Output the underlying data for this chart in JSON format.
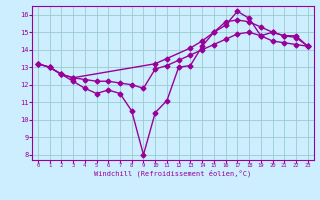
{
  "xlabel": "Windchill (Refroidissement éolien,°C)",
  "bg_color": "#cceeff",
  "grid_color": "#99cccc",
  "line_color": "#990099",
  "xlim": [
    -0.5,
    23.5
  ],
  "ylim": [
    7.7,
    16.5
  ],
  "yticks": [
    8,
    9,
    10,
    11,
    12,
    13,
    14,
    15,
    16
  ],
  "xticks": [
    0,
    1,
    2,
    3,
    4,
    5,
    6,
    7,
    8,
    9,
    10,
    11,
    12,
    13,
    14,
    15,
    16,
    17,
    18,
    19,
    20,
    21,
    22,
    23
  ],
  "line1_x": [
    0,
    1,
    2,
    3,
    4,
    5,
    6,
    7,
    8,
    9,
    10,
    11,
    12,
    13,
    14,
    15,
    16,
    17,
    18,
    19,
    20,
    21,
    22,
    23
  ],
  "line1_y": [
    13.2,
    13.0,
    12.6,
    12.2,
    11.8,
    11.5,
    11.7,
    11.5,
    10.5,
    8.0,
    10.4,
    11.1,
    13.0,
    13.1,
    14.2,
    15.0,
    15.4,
    16.2,
    15.8,
    14.8,
    15.0,
    14.8,
    14.8,
    14.2
  ],
  "line2_x": [
    0,
    1,
    2,
    3,
    10,
    11,
    13,
    14,
    15,
    16,
    17,
    18,
    19,
    20,
    21,
    22,
    23
  ],
  "line2_y": [
    13.2,
    13.0,
    12.6,
    12.4,
    13.2,
    13.5,
    14.1,
    14.5,
    15.0,
    15.6,
    15.7,
    15.6,
    15.3,
    15.0,
    14.8,
    14.7,
    14.2
  ],
  "line3_x": [
    0,
    1,
    2,
    3,
    4,
    5,
    6,
    7,
    8,
    9,
    10,
    11,
    12,
    13,
    14,
    15,
    16,
    17,
    18,
    19,
    20,
    21,
    22,
    23
  ],
  "line3_y": [
    13.2,
    13.0,
    12.6,
    12.4,
    12.3,
    12.2,
    12.2,
    12.1,
    12.0,
    11.8,
    12.9,
    13.1,
    13.4,
    13.7,
    14.0,
    14.3,
    14.6,
    14.9,
    15.0,
    14.8,
    14.5,
    14.4,
    14.3,
    14.2
  ],
  "marker": "D",
  "markersize": 2.5,
  "linewidth": 1.0
}
